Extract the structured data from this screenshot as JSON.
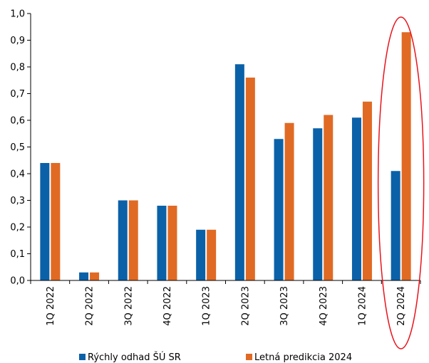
{
  "chart_data": {
    "type": "bar",
    "categories": [
      "1Q 2022",
      "2Q 2022",
      "3Q 2022",
      "4Q 2022",
      "1Q 2023",
      "2Q 2023",
      "3Q 2023",
      "4Q 2023",
      "1Q 2024",
      "2Q 2024"
    ],
    "series": [
      {
        "name": "Rýchly odhad ŠÚ SR",
        "color": "#0a61a8",
        "values": [
          0.44,
          0.03,
          0.3,
          0.28,
          0.19,
          0.81,
          0.53,
          0.57,
          0.61,
          0.41
        ]
      },
      {
        "name": "Letná predikcia 2024",
        "color": "#e06a24",
        "values": [
          0.44,
          0.03,
          0.3,
          0.28,
          0.19,
          0.76,
          0.59,
          0.62,
          0.67,
          0.93
        ]
      }
    ],
    "yticks": [
      "0,0",
      "0,1",
      "0,2",
      "0,3",
      "0,4",
      "0,5",
      "0,6",
      "0,7",
      "0,8",
      "0,9",
      "1,0"
    ],
    "ylim": [
      0,
      1.0
    ],
    "grid": false,
    "legend_position": "bottom",
    "highlight": {
      "category": "2Q 2024",
      "shape": "ellipse",
      "color": "#e8141c"
    }
  }
}
